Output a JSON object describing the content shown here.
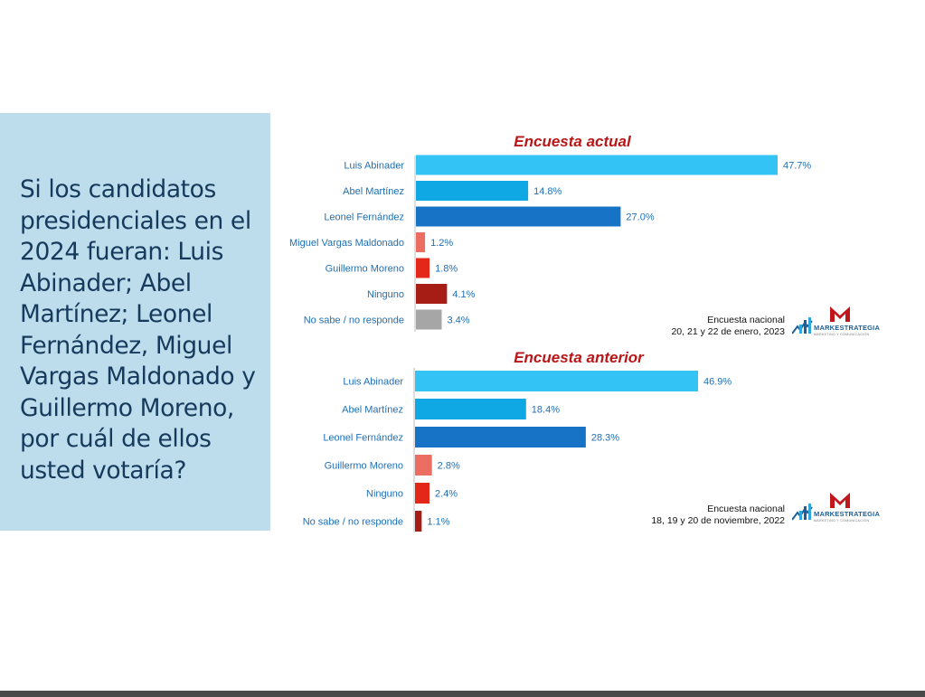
{
  "question": "Si los candidatos presidenciales en el 2024 fueran: Luis Abinader; Abel Martínez; Leonel Fernández, Miguel Vargas Maldonado y Guillermo Moreno, por cuál de ellos usted votaría?",
  "brand": {
    "name": "MARKESTRATEGIA",
    "tagline": "MARKETING Y COMUNICACIÓN"
  },
  "colors": {
    "panel_bg": "#bddcec",
    "title_red": "#b81618",
    "label_blue": "#1f6fb5"
  },
  "chart_data": [
    {
      "type": "bar",
      "orientation": "horizontal",
      "title": "Encuesta actual",
      "categories": [
        "Luis Abinader",
        "Abel Martínez",
        "Leonel Fernández",
        "Miguel Vargas Maldonado",
        "Guillermo Moreno",
        "Ninguno",
        "No sabe / no responde"
      ],
      "values": [
        47.7,
        14.8,
        27.0,
        1.2,
        1.8,
        4.1,
        3.4
      ],
      "value_labels": [
        "47.7%",
        "14.8%",
        "27.0%",
        "1.2%",
        "1.8%",
        "4.1%",
        "3.4%"
      ],
      "bar_colors": [
        "#33c3f5",
        "#0fa8e4",
        "#1673c6",
        "#ec6e62",
        "#e3281a",
        "#a51d14",
        "#a6a6a6"
      ],
      "xlim": [
        0,
        47.7
      ],
      "note": [
        "Encuesta nacional",
        "20, 21 y 22 de enero, 2023"
      ]
    },
    {
      "type": "bar",
      "orientation": "horizontal",
      "title": "Encuesta anterior",
      "categories": [
        "Luis Abinader",
        "Abel Martínez",
        "Leonel Fernández",
        "Guillermo Moreno",
        "Ninguno",
        "No sabe / no responde"
      ],
      "values": [
        46.9,
        18.4,
        28.3,
        2.8,
        2.4,
        1.1
      ],
      "value_labels": [
        "46.9%",
        "18.4%",
        "28.3%",
        "2.8%",
        "2.4%",
        "1.1%"
      ],
      "bar_colors": [
        "#33c3f5",
        "#0fa8e4",
        "#1673c6",
        "#ec6e62",
        "#e3281a",
        "#a51d14"
      ],
      "xlim": [
        0,
        46.9
      ],
      "note": [
        "Encuesta nacional",
        "18, 19 y 20 de noviembre, 2022"
      ]
    }
  ]
}
